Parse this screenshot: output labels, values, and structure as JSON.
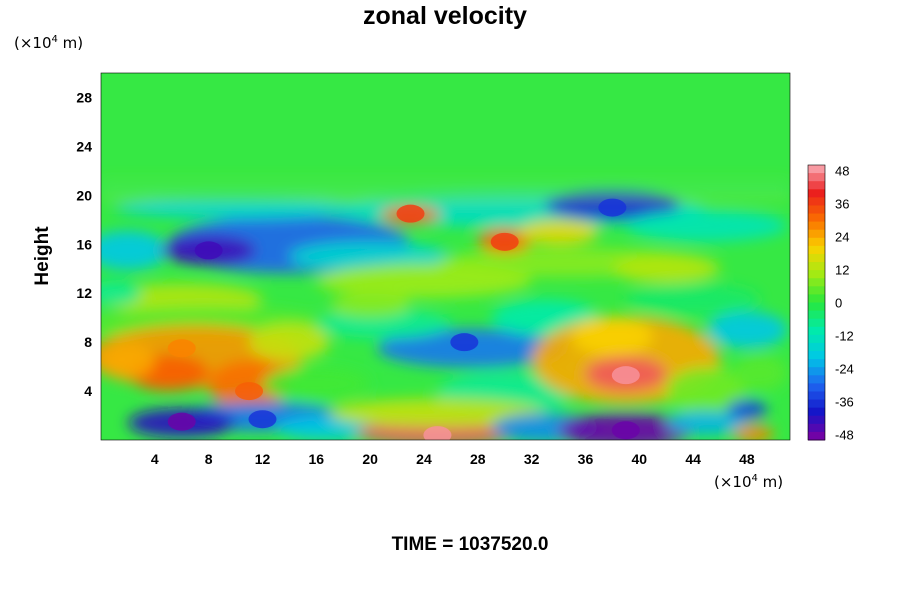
{
  "chart_data": {
    "type": "heatmap",
    "title": "zonal velocity",
    "ylabel": "Height",
    "xlabel": "",
    "x_unit": {
      "prefix": "(×10",
      "exp": "4",
      "suffix": " m)"
    },
    "y_unit": {
      "prefix": "(×10",
      "exp": "4",
      "suffix": " m)"
    },
    "xlim": [
      0,
      51.2
    ],
    "ylim": [
      0,
      30
    ],
    "x_ticks": [
      "4",
      "8",
      "12",
      "16",
      "20",
      "24",
      "28",
      "32",
      "36",
      "40",
      "44",
      "48"
    ],
    "y_ticks": [
      "4",
      "8",
      "12",
      "16",
      "20",
      "24",
      "28"
    ],
    "colorbar": {
      "range": [
        -50,
        50
      ],
      "ticks": [
        "48",
        "36",
        "24",
        "12",
        "0",
        "-12",
        "-24",
        "-36",
        "-48"
      ]
    },
    "time_label": "TIME = 1037520.0",
    "features": [
      {
        "x": 39,
        "y": 5.3,
        "value": 48
      },
      {
        "x": 25,
        "y": 0.4,
        "value": 48
      },
      {
        "x": 6,
        "y": 7.5,
        "value": 28
      },
      {
        "x": 11,
        "y": 4,
        "value": 32
      },
      {
        "x": 30,
        "y": 16.2,
        "value": 36
      },
      {
        "x": 23,
        "y": 18.5,
        "value": 36
      },
      {
        "x": 39,
        "y": 0.8,
        "value": -48
      },
      {
        "x": 6,
        "y": 1.5,
        "value": -48
      },
      {
        "x": 8,
        "y": 15.5,
        "value": -44
      },
      {
        "x": 38,
        "y": 19,
        "value": -36
      },
      {
        "x": 27,
        "y": 8,
        "value": -36
      },
      {
        "x": 12,
        "y": 1.7,
        "value": -36
      }
    ]
  }
}
